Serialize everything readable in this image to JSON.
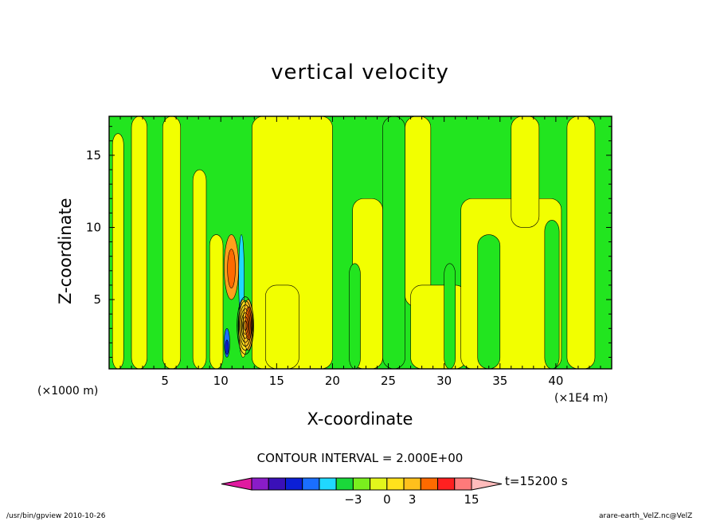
{
  "chart_data": {
    "type": "heatmap",
    "title": "vertical velocity",
    "xlabel": "X-coordinate",
    "ylabel": "Z-coordinate",
    "x_unit_note": "(×1000 m)",
    "x_scale_note": "(×1E4 m)",
    "xlim": [
      0,
      45
    ],
    "ylim": [
      0.2,
      17.7
    ],
    "x_ticks": [
      5,
      10,
      15,
      20,
      25,
      30,
      35,
      40
    ],
    "y_ticks": [
      5,
      10,
      15
    ],
    "contour_interval_label": "CONTOUR INTERVAL = 2.000E+00",
    "time_label": "t=15200 s",
    "colorbar": {
      "labels": [
        {
          "text": "−3",
          "value": -3
        },
        {
          "text": "0",
          "value": 0
        },
        {
          "text": "3",
          "value": 3
        },
        {
          "text": "15",
          "value": 15
        }
      ],
      "levels": [
        {
          "color": "#e01aa0"
        },
        {
          "color": "#8a1cc8"
        },
        {
          "color": "#3a10b8"
        },
        {
          "color": "#0b1fd6"
        },
        {
          "color": "#1a6fff"
        },
        {
          "color": "#20d8ff"
        },
        {
          "color": "#1ad83a"
        },
        {
          "color": "#7aef1e"
        },
        {
          "color": "#e2f51c"
        },
        {
          "color": "#ffe11c"
        },
        {
          "color": "#ffc01c"
        },
        {
          "color": "#ff6a00"
        },
        {
          "color": "#ff2020"
        },
        {
          "color": "#ff7a7a"
        },
        {
          "color": "#ffbcbc"
        }
      ]
    },
    "field": {
      "background_color": "#22e51f",
      "positive_color": "#f2ff00",
      "bands": [
        {
          "x0": 0.3,
          "x1": 1.3,
          "y0": 0.2,
          "y1": 16.5,
          "sign": "pos"
        },
        {
          "x0": 2.0,
          "x1": 3.4,
          "y0": 0.2,
          "y1": 17.7,
          "sign": "pos"
        },
        {
          "x0": 4.8,
          "x1": 6.4,
          "y0": 0.2,
          "y1": 17.7,
          "sign": "pos"
        },
        {
          "x0": 7.5,
          "x1": 8.7,
          "y0": 0.2,
          "y1": 14.0,
          "sign": "pos"
        },
        {
          "x0": 9.0,
          "x1": 10.2,
          "y0": 0.2,
          "y1": 9.5,
          "sign": "pos"
        },
        {
          "x0": 12.8,
          "x1": 20.0,
          "y0": 0.2,
          "y1": 17.7,
          "sign": "pos"
        },
        {
          "x0": 14.0,
          "x1": 17.0,
          "y0": 0.2,
          "y1": 6.0,
          "sign": "pos"
        },
        {
          "x0": 21.8,
          "x1": 24.5,
          "y0": 0.2,
          "y1": 12.0,
          "sign": "pos"
        },
        {
          "x0": 26.5,
          "x1": 28.8,
          "y0": 4.5,
          "y1": 17.7,
          "sign": "pos"
        },
        {
          "x0": 27.0,
          "x1": 32.0,
          "y0": 0.2,
          "y1": 6.0,
          "sign": "pos"
        },
        {
          "x0": 31.5,
          "x1": 40.5,
          "y0": 0.2,
          "y1": 12.0,
          "sign": "pos"
        },
        {
          "x0": 36.0,
          "x1": 38.5,
          "y0": 10.0,
          "y1": 17.7,
          "sign": "pos"
        },
        {
          "x0": 41.0,
          "x1": 43.5,
          "y0": 0.2,
          "y1": 17.7,
          "sign": "pos"
        },
        {
          "x0": 33.0,
          "x1": 35.0,
          "y0": 0.2,
          "y1": 9.5,
          "sign": "neg"
        },
        {
          "x0": 39.0,
          "x1": 40.3,
          "y0": 0.2,
          "y1": 10.5,
          "sign": "neg"
        },
        {
          "x0": 30.0,
          "x1": 31.0,
          "y0": 0.2,
          "y1": 7.5,
          "sign": "neg"
        },
        {
          "x0": 21.5,
          "x1": 22.5,
          "y0": 0.2,
          "y1": 7.5,
          "sign": "neg"
        },
        {
          "x0": 24.5,
          "x1": 26.5,
          "y0": 0.2,
          "y1": 17.7,
          "sign": "neg"
        }
      ],
      "cells": [
        {
          "x0": 10.3,
          "x1": 11.6,
          "y0": 5.0,
          "y1": 9.5,
          "color": "#ff9f1c"
        },
        {
          "x0": 10.6,
          "x1": 11.3,
          "y0": 5.8,
          "y1": 8.5,
          "color": "#ff6a00"
        },
        {
          "x0": 10.3,
          "x1": 10.8,
          "y0": 1.0,
          "y1": 3.0,
          "color": "#1a6fff"
        },
        {
          "x0": 10.4,
          "x1": 10.7,
          "y0": 1.2,
          "y1": 2.2,
          "color": "#0b1fd6"
        },
        {
          "x0": 11.6,
          "x1": 12.1,
          "y0": 3.5,
          "y1": 9.5,
          "color": "#20d8ff"
        },
        {
          "x0": 11.6,
          "x1": 12.4,
          "y0": 1.0,
          "y1": 5.0,
          "color": "#ffe11c"
        },
        {
          "x0": 12.0,
          "x1": 12.9,
          "y0": 1.5,
          "y1": 5.0,
          "color": "#ffc01c"
        },
        {
          "x0": 12.2,
          "x1": 12.8,
          "y0": 2.2,
          "y1": 4.5,
          "color": "#ff6a00"
        }
      ]
    }
  },
  "footer": {
    "left": "/usr/bin/gpview  2010-10-26",
    "right": "arare-earth_VelZ.nc@VelZ"
  }
}
